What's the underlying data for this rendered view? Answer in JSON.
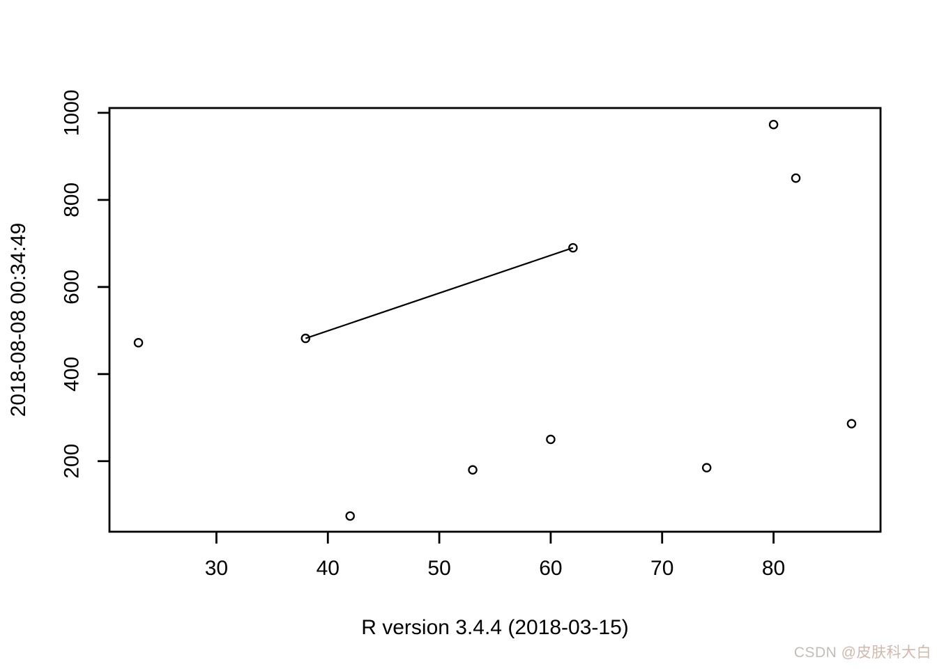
{
  "chart_data": {
    "type": "scatter",
    "title": "",
    "xlabel": "R version 3.4.4 (2018-03-15)",
    "ylabel": "2018-08-08 00:34:49",
    "x_ticks": [
      30,
      40,
      50,
      60,
      70,
      80
    ],
    "y_ticks": [
      200,
      400,
      600,
      800,
      1000
    ],
    "xlim": [
      20.4,
      89.6
    ],
    "ylim": [
      38,
      1011
    ],
    "grid": false,
    "legend": null,
    "point_style": "open-circle",
    "color": "#000000",
    "background": "#ffffff",
    "points": [
      {
        "x": 23,
        "y": 472
      },
      {
        "x": 38,
        "y": 482
      },
      {
        "x": 42,
        "y": 74
      },
      {
        "x": 53,
        "y": 180
      },
      {
        "x": 60,
        "y": 250
      },
      {
        "x": 62,
        "y": 690
      },
      {
        "x": 74,
        "y": 185
      },
      {
        "x": 80,
        "y": 973
      },
      {
        "x": 82,
        "y": 850
      },
      {
        "x": 87,
        "y": 286
      }
    ],
    "segments": [
      {
        "x1": 38,
        "y1": 482,
        "x2": 62,
        "y2": 690
      }
    ]
  },
  "watermark": {
    "prefix": "CSDN ",
    "handle": "@皮肤科大白",
    "prefix_color": "#c3bdb8",
    "handle_color": "#d2b8ab"
  }
}
